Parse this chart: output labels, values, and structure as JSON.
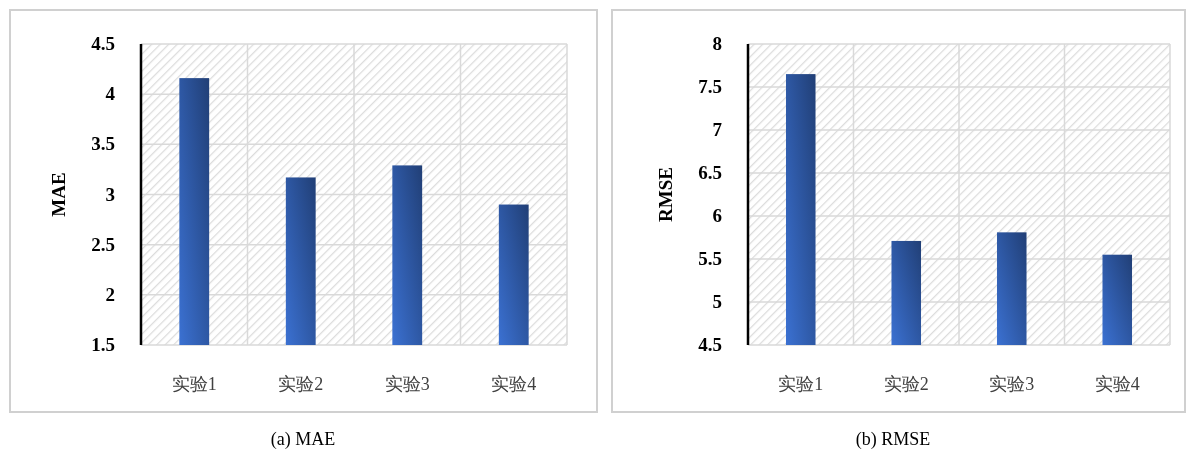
{
  "chart_data": [
    {
      "type": "bar",
      "ylabel": "MAE",
      "categories": [
        "实验1",
        "实验2",
        "实验3",
        "实验4"
      ],
      "series": [
        {
          "color": "#2f5aa8",
          "values": [
            4.16,
            3.17,
            3.29,
            2.9
          ]
        }
      ],
      "ylim": [
        1.5,
        4.5
      ],
      "yticks": [
        1.5,
        2,
        2.5,
        3,
        3.5,
        4,
        4.5
      ],
      "grid": true,
      "annotations": [
        "(a) MAE"
      ]
    },
    {
      "type": "bar",
      "ylabel": "RMSE",
      "categories": [
        "实验1",
        "实验2",
        "实验3",
        "实验4"
      ],
      "series": [
        {
          "color": "#2f5aa8",
          "values": [
            7.65,
            5.71,
            5.81,
            5.55
          ]
        }
      ],
      "ylim": [
        4.5,
        8
      ],
      "yticks": [
        4.5,
        5,
        5.5,
        6,
        6.5,
        7,
        7.5,
        8
      ],
      "grid": true,
      "annotations": [
        "(b) RMSE"
      ]
    }
  ]
}
